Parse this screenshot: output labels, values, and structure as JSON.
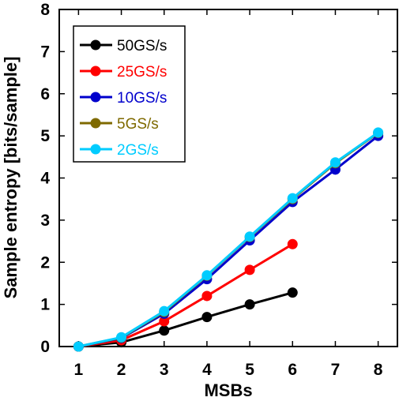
{
  "chart_data": {
    "type": "line",
    "title": "",
    "xlabel": "MSBs",
    "ylabel": "Sample entropy [bits/sample]",
    "xlim": [
      0.55,
      8.45
    ],
    "ylim": [
      0,
      8
    ],
    "xticks": [
      1,
      2,
      3,
      4,
      5,
      6,
      7,
      8
    ],
    "yticks": [
      0,
      1,
      2,
      3,
      4,
      5,
      6,
      7,
      8
    ],
    "grid": false,
    "legend_position": "top-left",
    "series": [
      {
        "name": "50GS/s",
        "color": "#000000",
        "x": [
          1,
          2,
          3,
          4,
          5,
          6
        ],
        "y": [
          0.0,
          0.1,
          0.38,
          0.7,
          1.0,
          1.28
        ]
      },
      {
        "name": "25GS/s",
        "color": "#ff0000",
        "x": [
          1,
          2,
          3,
          4,
          5,
          6
        ],
        "y": [
          0.0,
          0.15,
          0.6,
          1.2,
          1.82,
          2.43
        ]
      },
      {
        "name": "10GS/s",
        "color": "#0000cc",
        "x": [
          1,
          2,
          3,
          4,
          5,
          6,
          7,
          8
        ],
        "y": [
          0.0,
          0.2,
          0.78,
          1.6,
          2.52,
          3.43,
          4.2,
          5.0
        ]
      },
      {
        "name": "5GS/s",
        "color": "#7f6a00",
        "x": [
          1,
          2,
          3,
          4,
          5,
          6,
          7,
          8
        ],
        "y": [
          0.0,
          0.21,
          0.82,
          1.68,
          2.6,
          3.5,
          4.35,
          5.07
        ]
      },
      {
        "name": "2GS/s",
        "color": "#00ccff",
        "x": [
          1,
          2,
          3,
          4,
          5,
          6,
          7,
          8
        ],
        "y": [
          0.0,
          0.22,
          0.84,
          1.69,
          2.61,
          3.52,
          4.37,
          5.08
        ]
      }
    ]
  }
}
